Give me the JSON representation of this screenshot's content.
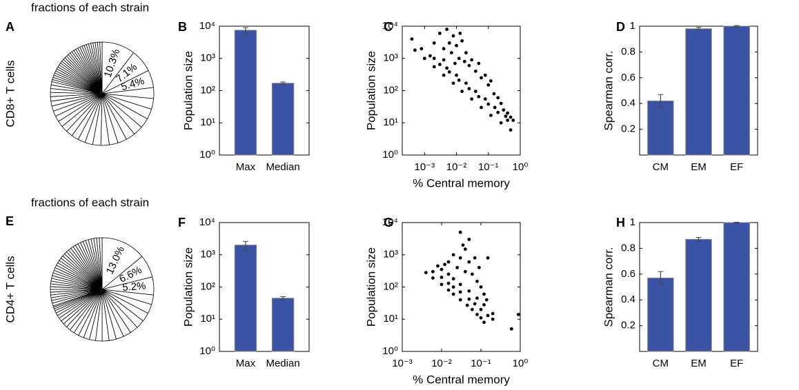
{
  "chart_data": [
    {
      "type": "pie",
      "label": "A",
      "title": "fractions of each strain",
      "row_label": "CD8+ T cells",
      "values": [
        10.3,
        7.1,
        5.4,
        3.4,
        3.3,
        3.2,
        3.1,
        3.0,
        2.9,
        2.8,
        2.7,
        2.6,
        2.5,
        2.4,
        2.3,
        2.2,
        2.1,
        2.0,
        1.9,
        1.8,
        1.7,
        1.6,
        1.5,
        1.4,
        1.3,
        1.2,
        1.1,
        1.0,
        0.7,
        0.7,
        0.7,
        0.7,
        0.7,
        0.7,
        0.7,
        0.7,
        0.7,
        0.7,
        0.7,
        0.7,
        0.7,
        0.7,
        0.7,
        0.7,
        0.7,
        0.7,
        0.7,
        0.7,
        0.7,
        0.7,
        0.7,
        0.7,
        0.7,
        0.7,
        0.7,
        0.7,
        0.7,
        0.7
      ],
      "value_labels": [
        "10.3%",
        "7.1%",
        "5.4%",
        null,
        null,
        null,
        null,
        null,
        null,
        null,
        null,
        null,
        null,
        null,
        null,
        null,
        null,
        null,
        null,
        null,
        null,
        null,
        null,
        null,
        null,
        null,
        null,
        null,
        null,
        null,
        null,
        null,
        null,
        null,
        null,
        null,
        null,
        null,
        null,
        null,
        null,
        null,
        null,
        null,
        null,
        null,
        null,
        null,
        null,
        null,
        null,
        null,
        null,
        null,
        null,
        null,
        null,
        null
      ],
      "color": "#ffffff"
    },
    {
      "type": "bar",
      "label": "B",
      "ylabel": "Population size",
      "categories": [
        "Max",
        "Median"
      ],
      "values": [
        7500,
        170
      ],
      "errors": [
        1500,
        15
      ],
      "color": "#3b53a4",
      "ylog": true,
      "ylim": [
        1,
        10000
      ],
      "yticks": [
        {
          "value": 1,
          "label": "10⁰"
        },
        {
          "value": 10,
          "label": "10¹"
        },
        {
          "value": 100,
          "label": "10²"
        },
        {
          "value": 1000,
          "label": "10³"
        },
        {
          "value": 10000,
          "label": "10⁴"
        }
      ]
    },
    {
      "type": "scatter",
      "label": "C",
      "ylabel": "Population size",
      "xlabel": "% Central memory",
      "color": "#000000",
      "xlog": true,
      "ylog": true,
      "x": [
        0.0005,
        0.001,
        0.002,
        0.004,
        0.008,
        0.015,
        0.03,
        0.06,
        0.12,
        0.25,
        0.5,
        0.0008,
        0.0015,
        0.003,
        0.006,
        0.012,
        0.025,
        0.05,
        0.1,
        0.2,
        0.4,
        0.0004,
        0.002,
        0.005,
        0.01,
        0.02,
        0.04,
        0.08,
        0.16,
        0.35,
        0.002,
        0.003,
        0.004,
        0.005,
        0.006,
        0.007,
        0.008,
        0.01,
        0.012,
        0.015,
        0.018,
        0.02,
        0.025,
        0.03,
        0.04,
        0.05,
        0.06,
        0.08,
        0.1,
        0.12,
        0.15,
        0.2,
        0.25,
        0.3,
        0.4,
        0.5,
        0.6,
        0.004,
        0.009,
        0.013
      ],
      "y": [
        1800,
        1000,
        550,
        300,
        170,
        95,
        55,
        30,
        17,
        10,
        6,
        2000,
        1200,
        650,
        380,
        210,
        115,
        65,
        38,
        21,
        12,
        4000,
        1000,
        500,
        300,
        170,
        95,
        55,
        30,
        16,
        3000,
        6000,
        2000,
        8000,
        3000,
        1500,
        5000,
        2500,
        1000,
        3500,
        800,
        1500,
        600,
        900,
        400,
        700,
        250,
        300,
        150,
        200,
        80,
        60,
        40,
        25,
        20,
        15,
        12,
        900,
        700,
        6000
      ],
      "xlim": [
        0.0002,
        1
      ],
      "ylim": [
        1,
        10000
      ],
      "xticks": [
        {
          "value": 0.001,
          "label": "10⁻³"
        },
        {
          "value": 0.01,
          "label": "10⁻²"
        },
        {
          "value": 0.1,
          "label": "10⁻¹"
        },
        {
          "value": 1,
          "label": "10⁰"
        }
      ],
      "yticks": [
        {
          "value": 1,
          "label": "10⁰"
        },
        {
          "value": 10,
          "label": "10¹"
        },
        {
          "value": 100,
          "label": "10²"
        },
        {
          "value": 1000,
          "label": "10³"
        },
        {
          "value": 10000,
          "label": "10⁴"
        }
      ]
    },
    {
      "type": "bar",
      "label": "D",
      "ylabel": "Spearman corr.",
      "categories": [
        "CM",
        "EM",
        "EF"
      ],
      "values": [
        0.42,
        0.98,
        1.0
      ],
      "errors": [
        0.05,
        0.01,
        0.005
      ],
      "color": "#3b53a4",
      "ylim": [
        0,
        1
      ],
      "yticks": [
        0.2,
        0.4,
        0.6,
        0.8,
        1
      ]
    },
    {
      "type": "pie",
      "label": "E",
      "title": "fractions of each strain",
      "row_label": "CD4+ T cells",
      "values": [
        13.0,
        6.6,
        5.2,
        2.8,
        2.7,
        2.6,
        2.5,
        2.4,
        2.3,
        2.2,
        2.1,
        2.0,
        1.9,
        1.8,
        1.7,
        1.6,
        1.5,
        1.4,
        1.3,
        1.2,
        1.1,
        1.0,
        0.9,
        0.8,
        0.7,
        0.6,
        0.5,
        0.4,
        0.8,
        0.8,
        0.8,
        0.8,
        0.8,
        0.8,
        0.8,
        0.8,
        0.8,
        0.8,
        0.8,
        0.8,
        0.8,
        0.8,
        0.8,
        0.8,
        0.8,
        0.8,
        0.8,
        0.8,
        0.8,
        0.8,
        0.8,
        0.8,
        0.8,
        0.8,
        0.8,
        0.8,
        0.8,
        0.8,
        0.8,
        0.8,
        0.8,
        0.8,
        0.8
      ],
      "value_labels": [
        "13.0%",
        "6.6%",
        "5.2%",
        null,
        null,
        null,
        null,
        null,
        null,
        null,
        null,
        null,
        null,
        null,
        null,
        null,
        null,
        null,
        null,
        null,
        null,
        null,
        null,
        null,
        null,
        null,
        null,
        null,
        null,
        null,
        null,
        null,
        null,
        null,
        null,
        null,
        null,
        null,
        null,
        null,
        null,
        null,
        null,
        null,
        null,
        null,
        null,
        null,
        null,
        null,
        null,
        null,
        null,
        null,
        null,
        null,
        null,
        null,
        null,
        null,
        null,
        null,
        null
      ],
      "color": "#ffffff"
    },
    {
      "type": "bar",
      "label": "F",
      "ylabel": "Population size",
      "categories": [
        "Max",
        "Median"
      ],
      "values": [
        2000,
        45
      ],
      "errors": [
        600,
        5
      ],
      "color": "#3b53a4",
      "ylog": true,
      "ylim": [
        1,
        10000
      ],
      "yticks": [
        {
          "value": 1,
          "label": "10⁰"
        },
        {
          "value": 10,
          "label": "10¹"
        },
        {
          "value": 100,
          "label": "10²"
        },
        {
          "value": 1000,
          "label": "10³"
        },
        {
          "value": 10000,
          "label": "10⁴"
        }
      ]
    },
    {
      "type": "scatter",
      "label": "G",
      "ylabel": "Population size",
      "xlabel": "% Central memory",
      "color": "#000000",
      "xlog": true,
      "ylog": true,
      "x": [
        0.004,
        0.006,
        0.01,
        0.015,
        0.02,
        0.03,
        0.045,
        0.06,
        0.08,
        0.1,
        0.12,
        0.006,
        0.01,
        0.015,
        0.02,
        0.03,
        0.05,
        0.07,
        0.1,
        0.15,
        0.01,
        0.015,
        0.02,
        0.03,
        0.05,
        0.08,
        0.12,
        0.015,
        0.02,
        0.025,
        0.03,
        0.03,
        0.035,
        0.04,
        0.04,
        0.05,
        0.05,
        0.06,
        0.07,
        0.08,
        0.09,
        0.1,
        0.12,
        0.14,
        0.15,
        0.2,
        0.2,
        0.6,
        0.9,
        0.008,
        0.012
      ],
      "y": [
        280,
        190,
        120,
        80,
        60,
        40,
        27,
        20,
        14,
        11,
        8,
        300,
        200,
        130,
        100,
        70,
        42,
        30,
        20,
        13,
        350,
        250,
        180,
        120,
        75,
        45,
        28,
        600,
        1000,
        400,
        5000,
        800,
        2000,
        300,
        1500,
        600,
        3000,
        250,
        800,
        150,
        400,
        100,
        60,
        40,
        800,
        15,
        10,
        5,
        14,
        450,
        500
      ],
      "xlim": [
        0.001,
        1
      ],
      "ylim": [
        1,
        10000
      ],
      "xticks": [
        {
          "value": 0.001,
          "label": "10⁻³"
        },
        {
          "value": 0.01,
          "label": "10⁻²"
        },
        {
          "value": 0.1,
          "label": "10⁻¹"
        },
        {
          "value": 1,
          "label": "10⁰"
        }
      ],
      "yticks": [
        {
          "value": 1,
          "label": "10⁰"
        },
        {
          "value": 10,
          "label": "10¹"
        },
        {
          "value": 100,
          "label": "10²"
        },
        {
          "value": 1000,
          "label": "10³"
        },
        {
          "value": 10000,
          "label": "10⁴"
        }
      ]
    },
    {
      "type": "bar",
      "label": "H",
      "ylabel": "Spearman corr.",
      "categories": [
        "CM",
        "EM",
        "EF"
      ],
      "values": [
        0.57,
        0.87,
        1.0
      ],
      "errors": [
        0.05,
        0.015,
        0.003
      ],
      "color": "#3b53a4",
      "ylim": [
        0,
        1
      ],
      "yticks": [
        0.2,
        0.4,
        0.6,
        0.8,
        1
      ]
    }
  ]
}
